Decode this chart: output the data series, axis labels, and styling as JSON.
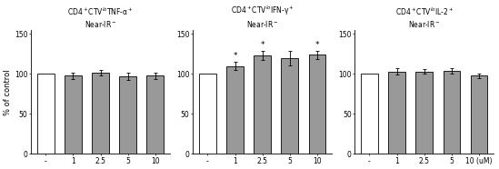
{
  "panels": [
    {
      "title": "CD4$^+$CTV$^{lo}$TNF-α$^+$\nNear-IR$^-$",
      "values": [
        100,
        98,
        102,
        97,
        98
      ],
      "errors": [
        0,
        4,
        3.5,
        5,
        4
      ],
      "bar_colors": [
        "white",
        "#999999",
        "#999999",
        "#999999",
        "#999999"
      ],
      "sig": [
        false,
        false,
        false,
        false,
        false
      ],
      "ylabel": "% of control",
      "show_ylabel": true
    },
    {
      "title": "CD4$^+$CTV$^{lo}$IFN-γ$^+$\nNear-IR$^-$",
      "values": [
        100,
        110,
        123,
        120,
        124
      ],
      "errors": [
        0,
        5,
        6,
        9,
        5
      ],
      "bar_colors": [
        "white",
        "#999999",
        "#999999",
        "#999999",
        "#999999"
      ],
      "sig": [
        false,
        true,
        true,
        false,
        true
      ],
      "ylabel": "",
      "show_ylabel": false
    },
    {
      "title": "CD4$^+$CTV$^{lo}$IL-2$^+$\nNear-IR$^-$",
      "values": [
        100,
        103,
        103,
        104,
        98
      ],
      "errors": [
        0,
        4,
        3,
        3.5,
        3
      ],
      "bar_colors": [
        "white",
        "#999999",
        "#999999",
        "#999999",
        "#999999"
      ],
      "sig": [
        false,
        false,
        false,
        false,
        false
      ],
      "ylabel": "",
      "show_ylabel": false
    }
  ],
  "xtick_labels": [
    "-",
    "1",
    "2.5",
    "5",
    "10"
  ],
  "last_xlabel": "(uM)",
  "ylim": [
    0,
    155
  ],
  "yticks": [
    0,
    50,
    100,
    150
  ],
  "bar_width": 0.62,
  "edgecolor": "black",
  "sig_marker": "*",
  "sig_fontsize": 6.5,
  "title_fontsize": 5.5,
  "tick_fontsize": 5.5,
  "ylabel_fontsize": 6,
  "linewidth": 0.6,
  "capsize": 1.5,
  "figure_width": 5.49,
  "figure_height": 1.86,
  "dpi": 100
}
